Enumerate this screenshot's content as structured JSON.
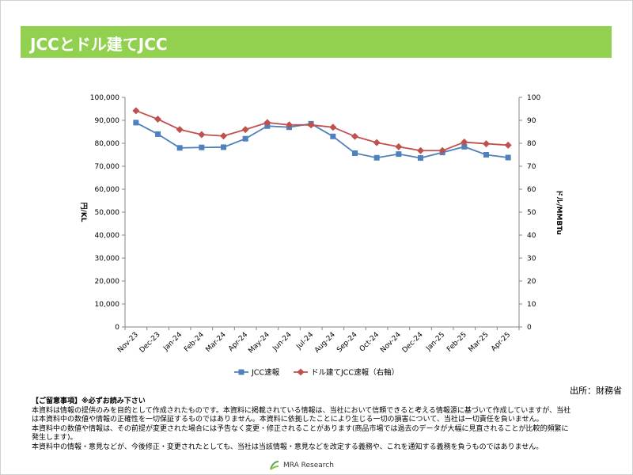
{
  "header": {
    "title": "JCCとドル建てJCC"
  },
  "chart_data": {
    "type": "line",
    "categories": [
      "Nov-23",
      "Dec-23",
      "Jan-24",
      "Feb-24",
      "Mar-24",
      "Apr-24",
      "May-24",
      "Jun-24",
      "Jul-24",
      "Aug-24",
      "Sep-24",
      "Oct-24",
      "Nov-24",
      "Dec-24",
      "Jan-25",
      "Feb-25",
      "Mar-25",
      "Apr-25"
    ],
    "series": [
      {
        "name": "JCC速報",
        "axis": "left",
        "color": "#4f81bd",
        "marker": "square",
        "values": [
          89000,
          84000,
          78000,
          78200,
          78300,
          82000,
          87500,
          87000,
          88500,
          83000,
          75700,
          73700,
          75300,
          73600,
          76000,
          78500,
          75000,
          73800
        ]
      },
      {
        "name": "ドル建てJCC速報（右軸）",
        "axis": "right",
        "color": "#c0504d",
        "marker": "diamond",
        "values": [
          94.2,
          90.5,
          86.0,
          83.8,
          83.2,
          86.0,
          89.0,
          88.0,
          88.0,
          87.0,
          83.0,
          80.3,
          78.5,
          76.8,
          76.8,
          80.5,
          79.8,
          79.2
        ]
      }
    ],
    "ylabel": "円/KL",
    "y2label": "ドル/MMBTu",
    "ylim": [
      0,
      100000
    ],
    "y2lim": [
      0,
      100
    ],
    "yticks": [
      "0",
      "10,000",
      "20,000",
      "30,000",
      "40,000",
      "50,000",
      "60,000",
      "70,000",
      "80,000",
      "90,000",
      "100,000"
    ],
    "y2ticks": [
      "0",
      "10",
      "20",
      "30",
      "40",
      "50",
      "60",
      "70",
      "80",
      "90",
      "100"
    ],
    "grid": false,
    "legend": "bottom"
  },
  "source": "出所：財務省",
  "notes": {
    "title": "【ご留意事項】※必ずお読み下さい",
    "lines": [
      "本資料は情報の提供のみを目的として作成されたものです。本資料に掲載されている情報は、当社において信頼できると考える情報源に基づいて作成していますが、当社",
      "は本資料中の数値や情報の正確性を一切保証するものではありません。本資料に依拠したことにより生じる一切の損害について、当社は一切責任を負いません。",
      "本資料中の数値や情報は、その前提が変更された場合には予告なく変更・修正されることがあります(商品市場では過去のデータが大幅に見直されることが比較的頻繁に",
      "発生します)。",
      "本資料中の情報・意見などが、今後修正・変更されたとしても、当社は当該情報・意見などを改定する義務や、これを通知する義務を負うものではありません。"
    ]
  },
  "logo": {
    "text": "MRA Research",
    "color": "#5ba35b"
  }
}
